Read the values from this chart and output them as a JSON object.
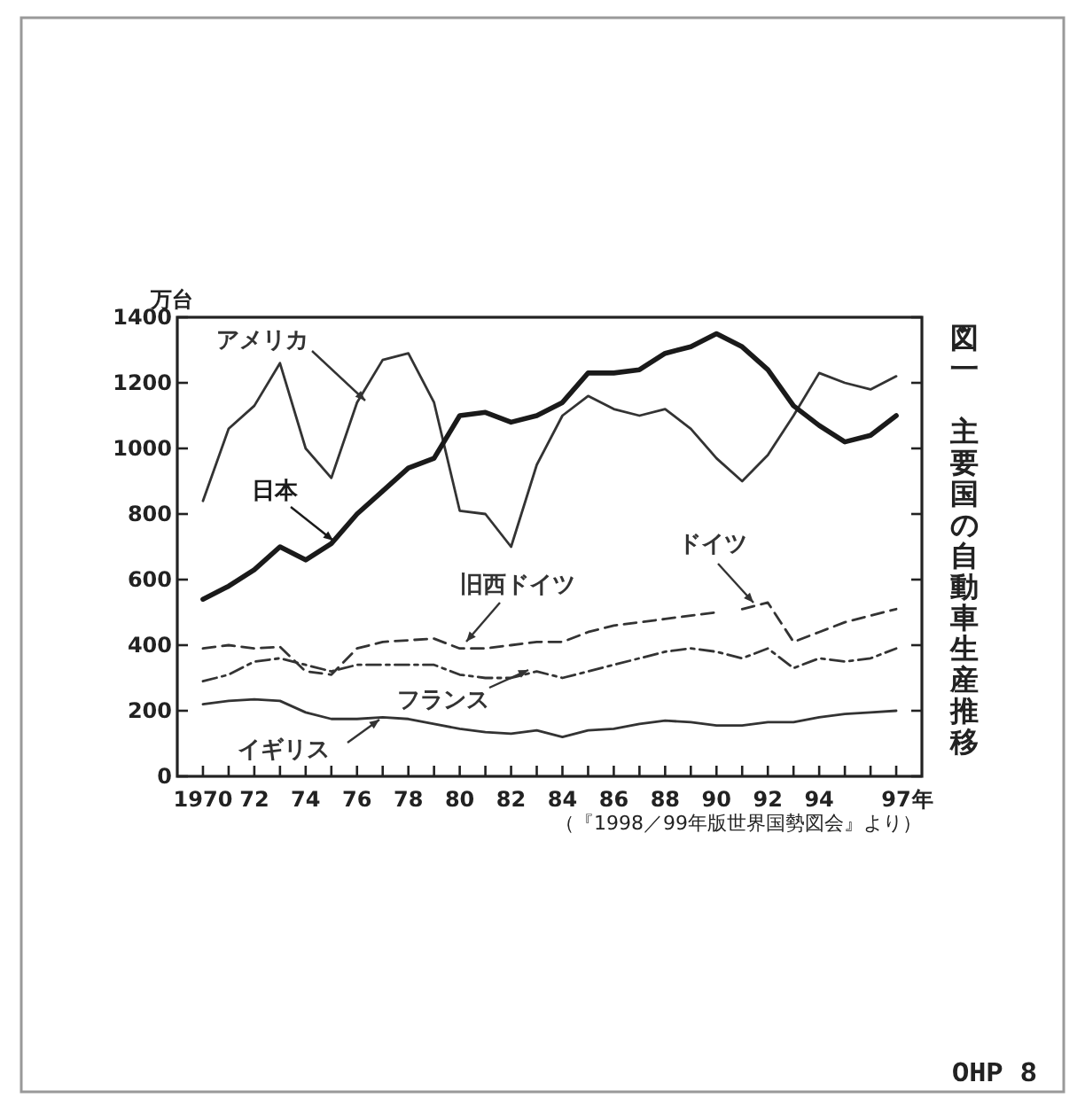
{
  "chart_data": {
    "type": "line",
    "title": "図一",
    "subtitle": "主要国の自動車生産推移",
    "ylabel": "万台",
    "annotations": [
      "（『1998／99年版世界国勢図会』より）",
      "OHP 8"
    ],
    "xlim": [
      1969,
      1998
    ],
    "ylim": [
      0,
      1400
    ],
    "xticks": [
      {
        "value": 1970,
        "label": "1970"
      },
      {
        "value": 1971,
        "label": null
      },
      {
        "value": 1972,
        "label": "72"
      },
      {
        "value": 1973,
        "label": null
      },
      {
        "value": 1974,
        "label": "74"
      },
      {
        "value": 1975,
        "label": null
      },
      {
        "value": 1976,
        "label": "76"
      },
      {
        "value": 1977,
        "label": null
      },
      {
        "value": 1978,
        "label": "78"
      },
      {
        "value": 1979,
        "label": null
      },
      {
        "value": 1980,
        "label": "80"
      },
      {
        "value": 1981,
        "label": null
      },
      {
        "value": 1982,
        "label": "82"
      },
      {
        "value": 1983,
        "label": null
      },
      {
        "value": 1984,
        "label": "84"
      },
      {
        "value": 1985,
        "label": null
      },
      {
        "value": 1986,
        "label": "86"
      },
      {
        "value": 1987,
        "label": null
      },
      {
        "value": 1988,
        "label": "88"
      },
      {
        "value": 1989,
        "label": null
      },
      {
        "value": 1990,
        "label": "90"
      },
      {
        "value": 1991,
        "label": null
      },
      {
        "value": 1992,
        "label": "92"
      },
      {
        "value": 1993,
        "label": null
      },
      {
        "value": 1994,
        "label": "94"
      },
      {
        "value": 1995,
        "label": null
      },
      {
        "value": 1996,
        "label": null
      },
      {
        "value": 1997,
        "label": "97"
      }
    ],
    "xlabel": "年",
    "yticks": [
      0,
      200,
      400,
      600,
      800,
      1000,
      1200,
      1400
    ],
    "grid": false,
    "marker": "none",
    "series": [
      {
        "name": "アメリカ",
        "color": "#333333",
        "line_style": "solid",
        "x": [
          1970,
          1971,
          1972,
          1973,
          1974,
          1975,
          1976,
          1977,
          1978,
          1979,
          1980,
          1981,
          1982,
          1983,
          1984,
          1985,
          1986,
          1987,
          1988,
          1989,
          1990,
          1991,
          1992,
          1993,
          1994,
          1995,
          1996,
          1997
        ],
        "values": [
          840,
          1060,
          1130,
          1260,
          1000,
          910,
          1140,
          1270,
          1290,
          1140,
          810,
          800,
          700,
          950,
          1100,
          1160,
          1120,
          1100,
          1120,
          1060,
          970,
          900,
          980,
          1100,
          1230,
          1200,
          1180,
          1220
        ]
      },
      {
        "name": "日本",
        "color": "#1a1a1a",
        "line_style": "solid",
        "x": [
          1970,
          1971,
          1972,
          1973,
          1974,
          1975,
          1976,
          1977,
          1978,
          1979,
          1980,
          1981,
          1982,
          1983,
          1984,
          1985,
          1986,
          1987,
          1988,
          1989,
          1990,
          1991,
          1992,
          1993,
          1994,
          1995,
          1996,
          1997
        ],
        "values": [
          540,
          580,
          630,
          700,
          660,
          710,
          800,
          870,
          940,
          970,
          1100,
          1110,
          1080,
          1100,
          1140,
          1230,
          1230,
          1240,
          1290,
          1310,
          1350,
          1310,
          1240,
          1130,
          1070,
          1020,
          1040,
          1100
        ]
      },
      {
        "name": "旧西ドイツ",
        "color": "#333333",
        "line_style": "dashed",
        "x": [
          1970,
          1971,
          1972,
          1973,
          1974,
          1975,
          1976,
          1977,
          1978,
          1979,
          1980,
          1981,
          1982,
          1983,
          1984,
          1985,
          1986,
          1987,
          1988,
          1989,
          1990
        ],
        "values": [
          390,
          400,
          390,
          395,
          320,
          310,
          390,
          410,
          415,
          420,
          390,
          390,
          400,
          410,
          410,
          440,
          460,
          470,
          480,
          490,
          500
        ]
      },
      {
        "name": "ドイツ",
        "color": "#333333",
        "line_style": "dashed",
        "x": [
          1991,
          1992,
          1993,
          1994,
          1995,
          1996,
          1997
        ],
        "values": [
          510,
          530,
          410,
          440,
          470,
          490,
          510
        ]
      },
      {
        "name": "フランス",
        "color": "#333333",
        "line_style": "dashdot",
        "x": [
          1970,
          1971,
          1972,
          1973,
          1974,
          1975,
          1976,
          1977,
          1978,
          1979,
          1980,
          1981,
          1982,
          1983,
          1984,
          1985,
          1986,
          1987,
          1988,
          1989,
          1990,
          1991,
          1992,
          1993,
          1994,
          1995,
          1996,
          1997
        ],
        "values": [
          290,
          310,
          350,
          360,
          340,
          320,
          340,
          340,
          340,
          340,
          310,
          300,
          300,
          320,
          300,
          320,
          340,
          360,
          380,
          390,
          380,
          360,
          390,
          330,
          360,
          350,
          360,
          390
        ]
      },
      {
        "name": "イギリス",
        "color": "#333333",
        "line_style": "solid",
        "x": [
          1970,
          1971,
          1972,
          1973,
          1974,
          1975,
          1976,
          1977,
          1978,
          1979,
          1980,
          1981,
          1982,
          1983,
          1984,
          1985,
          1986,
          1987,
          1988,
          1989,
          1990,
          1991,
          1992,
          1993,
          1994,
          1995,
          1996,
          1997
        ],
        "values": [
          220,
          230,
          235,
          230,
          195,
          175,
          175,
          180,
          175,
          160,
          145,
          135,
          130,
          140,
          120,
          140,
          145,
          160,
          170,
          165,
          155,
          155,
          165,
          165,
          180,
          190,
          195,
          200
        ]
      }
    ]
  }
}
